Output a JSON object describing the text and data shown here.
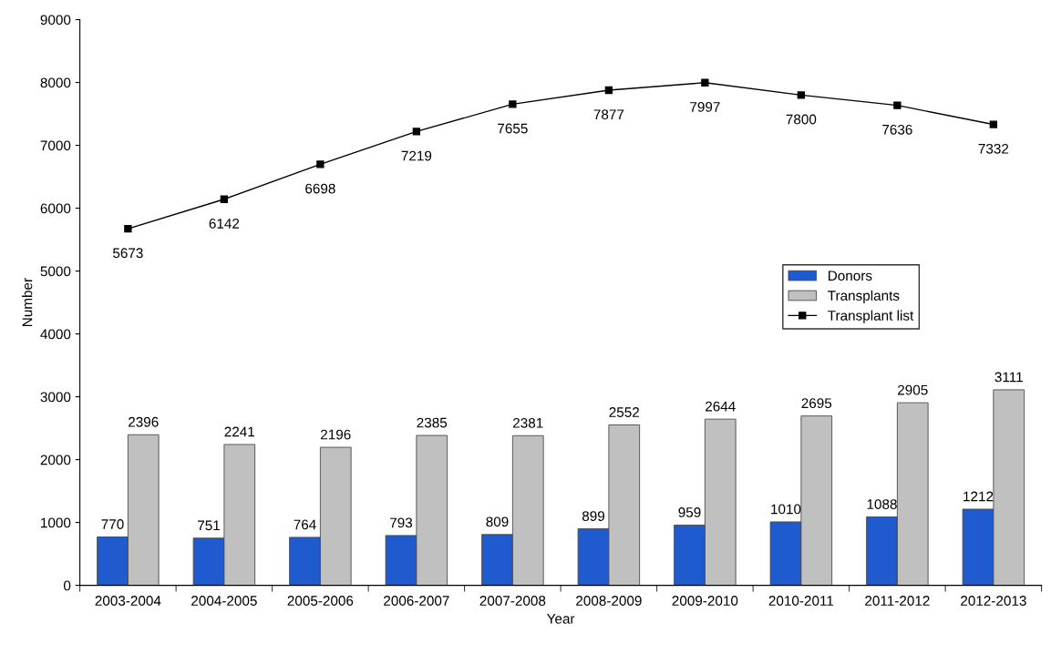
{
  "chart_data": {
    "type": "bar",
    "xlabel": "Year",
    "ylabel": "Number",
    "categories": [
      "2003-2004",
      "2004-2005",
      "2005-2006",
      "2006-2007",
      "2007-2008",
      "2008-2009",
      "2009-2010",
      "2010-2011",
      "2011-2012",
      "2012-2013"
    ],
    "series": [
      {
        "name": "Donors",
        "color": "#1f5bcf",
        "values": [
          770,
          751,
          764,
          793,
          809,
          899,
          959,
          1010,
          1088,
          1212
        ]
      },
      {
        "name": "Transplants",
        "color": "#c0c0c0",
        "values": [
          2396,
          2241,
          2196,
          2385,
          2381,
          2552,
          2644,
          2695,
          2905,
          3111
        ]
      },
      {
        "name": "Transplant list",
        "type": "line",
        "color": "#000000",
        "marker": "square",
        "values": [
          5673,
          6142,
          6698,
          7219,
          7655,
          7877,
          7997,
          7800,
          7636,
          7332
        ]
      }
    ],
    "ylim": [
      0,
      9000
    ],
    "yticks": [
      0,
      1000,
      2000,
      3000,
      4000,
      5000,
      6000,
      7000,
      8000,
      9000
    ],
    "data_labels": true,
    "legend": "center right",
    "grid": false
  }
}
